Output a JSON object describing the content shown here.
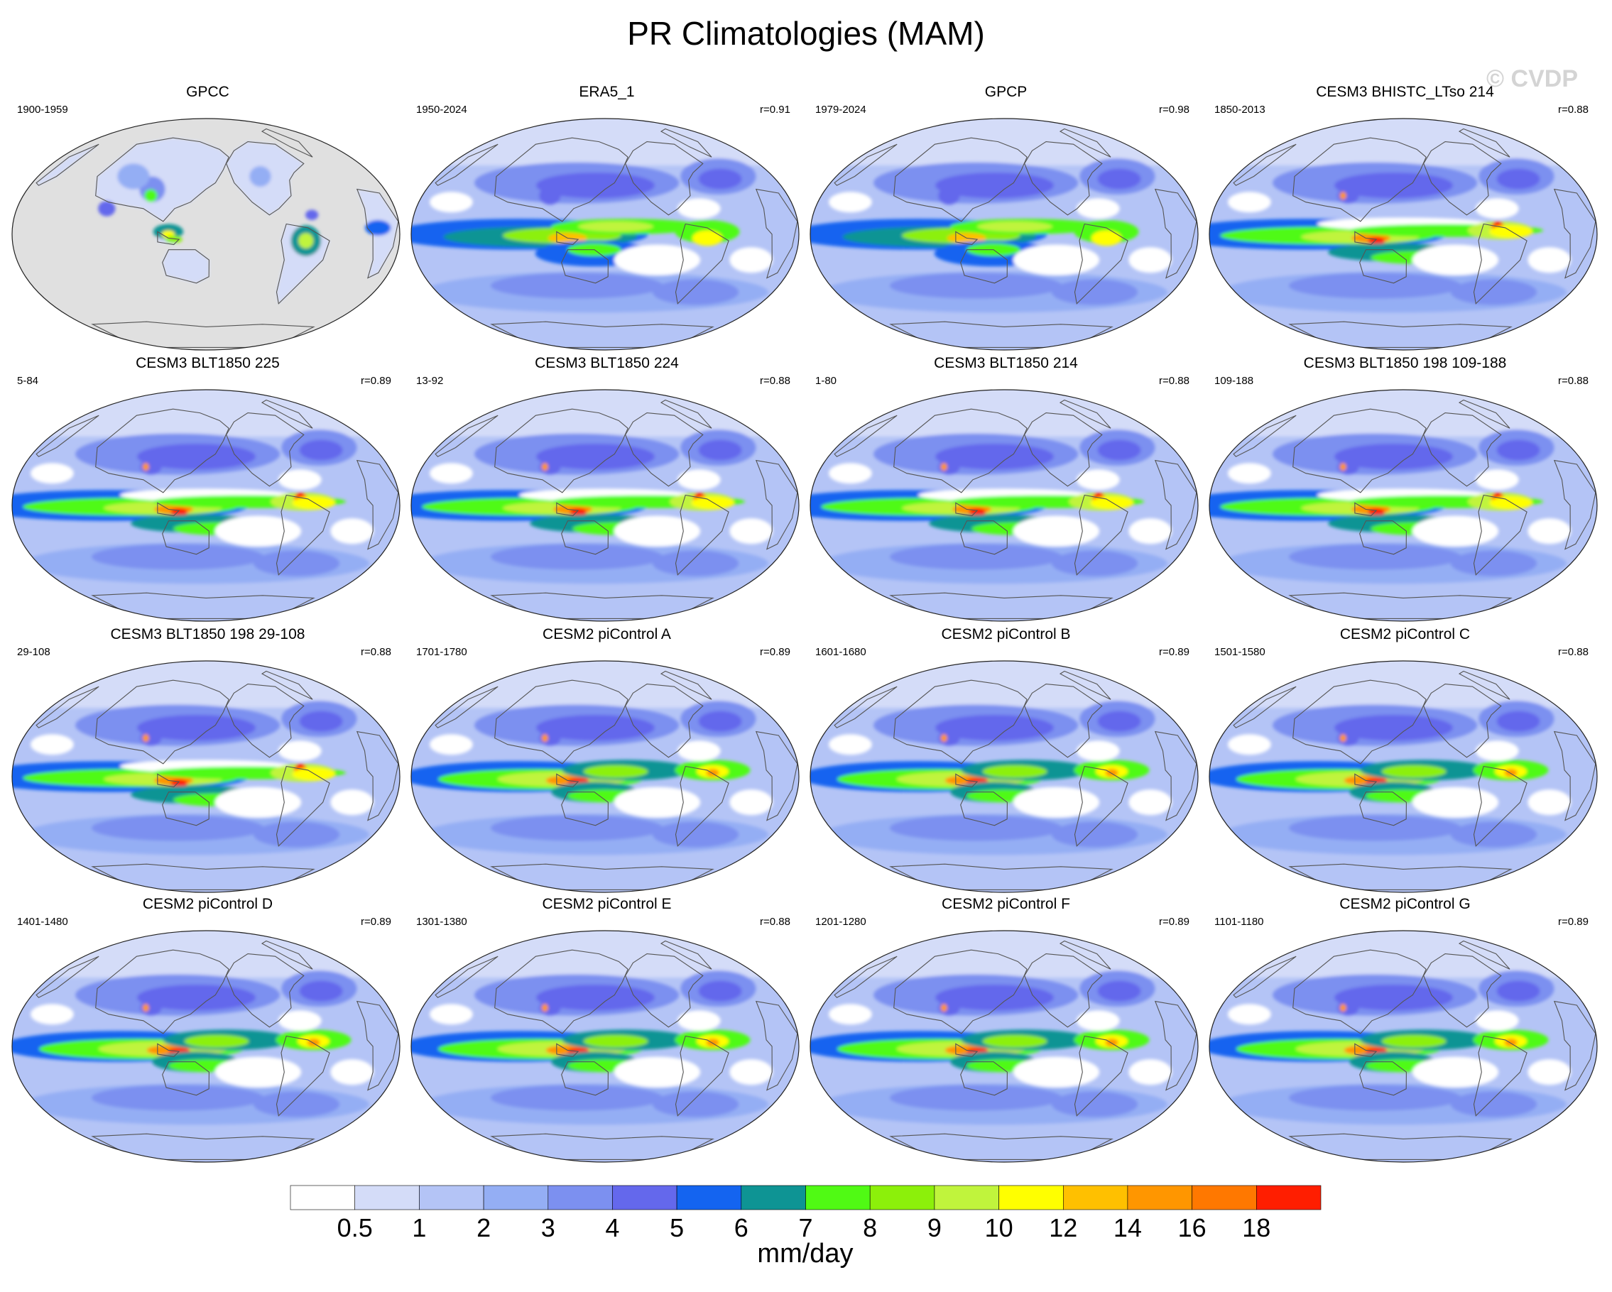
{
  "title": "PR Climatologies (MAM)",
  "watermark": "© CVDP",
  "chart_data": {
    "type": "heatmap",
    "title": "PR Climatologies (MAM)",
    "projection": "Robinson (Pacific-centered)",
    "units": "mm/day",
    "colorbar": {
      "levels": [
        0.5,
        1,
        2,
        3,
        4,
        5,
        6,
        7,
        8,
        9,
        10,
        12,
        14,
        16,
        18
      ],
      "tick_labels": [
        "0.5",
        "1",
        "2",
        "3",
        "4",
        "5",
        "6",
        "7",
        "8",
        "9",
        "10",
        "12",
        "14",
        "16",
        "18"
      ],
      "colors": [
        "#ffffff",
        "#d4dcf8",
        "#b4c4f6",
        "#94aef4",
        "#7c90f0",
        "#6468ec",
        "#1464f0",
        "#0e9494",
        "#50fa14",
        "#8cf00a",
        "#c0f43c",
        "#ffff00",
        "#ffc000",
        "#ff9600",
        "#ff7800",
        "#ff1e00"
      ],
      "label": "mm/day"
    },
    "panels": [
      {
        "name": "GPCC",
        "years": "1900-1959",
        "r": "",
        "pattern": "obs_land"
      },
      {
        "name": "ERA5_1",
        "years": "1950-2024",
        "r": "r=0.91",
        "pattern": "obs"
      },
      {
        "name": "GPCP",
        "years": "1979-2024",
        "r": "r=0.98",
        "pattern": "obs"
      },
      {
        "name": "CESM3 BHISTC_LTso 214",
        "years": "1850-2013",
        "r": "r=0.88",
        "pattern": "cesm3"
      },
      {
        "name": "CESM3 BLT1850 225",
        "years": "5-84",
        "r": "r=0.89",
        "pattern": "cesm3"
      },
      {
        "name": "CESM3 BLT1850 224",
        "years": "13-92",
        "r": "r=0.88",
        "pattern": "cesm3"
      },
      {
        "name": "CESM3 BLT1850 214",
        "years": "1-80",
        "r": "r=0.88",
        "pattern": "cesm3"
      },
      {
        "name": "CESM3 BLT1850 198 109-188",
        "years": "109-188",
        "r": "r=0.88",
        "pattern": "cesm3"
      },
      {
        "name": "CESM3 BLT1850 198 29-108",
        "years": "29-108",
        "r": "r=0.88",
        "pattern": "cesm3"
      },
      {
        "name": "CESM2 piControl A",
        "years": "1701-1780",
        "r": "r=0.89",
        "pattern": "cesm2"
      },
      {
        "name": "CESM2 piControl B",
        "years": "1601-1680",
        "r": "r=0.89",
        "pattern": "cesm2"
      },
      {
        "name": "CESM2 piControl C",
        "years": "1501-1580",
        "r": "r=0.88",
        "pattern": "cesm2"
      },
      {
        "name": "CESM2 piControl D",
        "years": "1401-1480",
        "r": "r=0.89",
        "pattern": "cesm2"
      },
      {
        "name": "CESM2 piControl E",
        "years": "1301-1380",
        "r": "r=0.88",
        "pattern": "cesm2"
      },
      {
        "name": "CESM2 piControl F",
        "years": "1201-1280",
        "r": "r=0.89",
        "pattern": "cesm2"
      },
      {
        "name": "CESM2 piControl G",
        "years": "1101-1180",
        "r": "r=0.89",
        "pattern": "cesm2"
      }
    ]
  }
}
